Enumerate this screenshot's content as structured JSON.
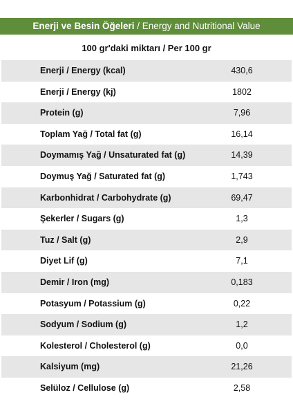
{
  "header": {
    "title_bold": "Enerji ve Besin Öğeleri",
    "title_rest": " / Energy and Nutritional Value"
  },
  "subheader": "100 gr'daki miktarı / Per 100 gr",
  "colors": {
    "header_bg": "#5f8d3a",
    "row_shade": "#e6e6e6"
  },
  "rows": [
    {
      "label": "Enerji / Energy (kcal)",
      "value": "430,6"
    },
    {
      "label": "Enerji / Energy (kj)",
      "value": "1802"
    },
    {
      "label": "Protein (g)",
      "value": "7,96"
    },
    {
      "label": "Toplam Yağ / Total fat (g)",
      "value": "16,14"
    },
    {
      "label": "Doymamış Yağ / Unsaturated fat (g)",
      "value": "14,39"
    },
    {
      "label": "Doymuş Yağ / Saturated fat (g)",
      "value": "1,743"
    },
    {
      "label": "Karbonhidrat / Carbohydrate (g)",
      "value": "69,47"
    },
    {
      "label": "Şekerler / Sugars (g)",
      "value": "1,3"
    },
    {
      "label": "Tuz / Salt (g)",
      "value": "2,9"
    },
    {
      "label": "Diyet Lif (g)",
      "value": "7,1"
    },
    {
      "label": "Demir / Iron (mg)",
      "value": "0,183"
    },
    {
      "label": "Potasyum / Potassium (g)",
      "value": "0,22"
    },
    {
      "label": "Sodyum / Sodium (g)",
      "value": "1,2"
    },
    {
      "label": "Kolesterol / Cholesterol (g)",
      "value": "0,0"
    },
    {
      "label": "Kalsiyum (mg)",
      "value": "21,26"
    },
    {
      "label": "Selüloz / Cellulose (g)",
      "value": "2,58"
    }
  ]
}
